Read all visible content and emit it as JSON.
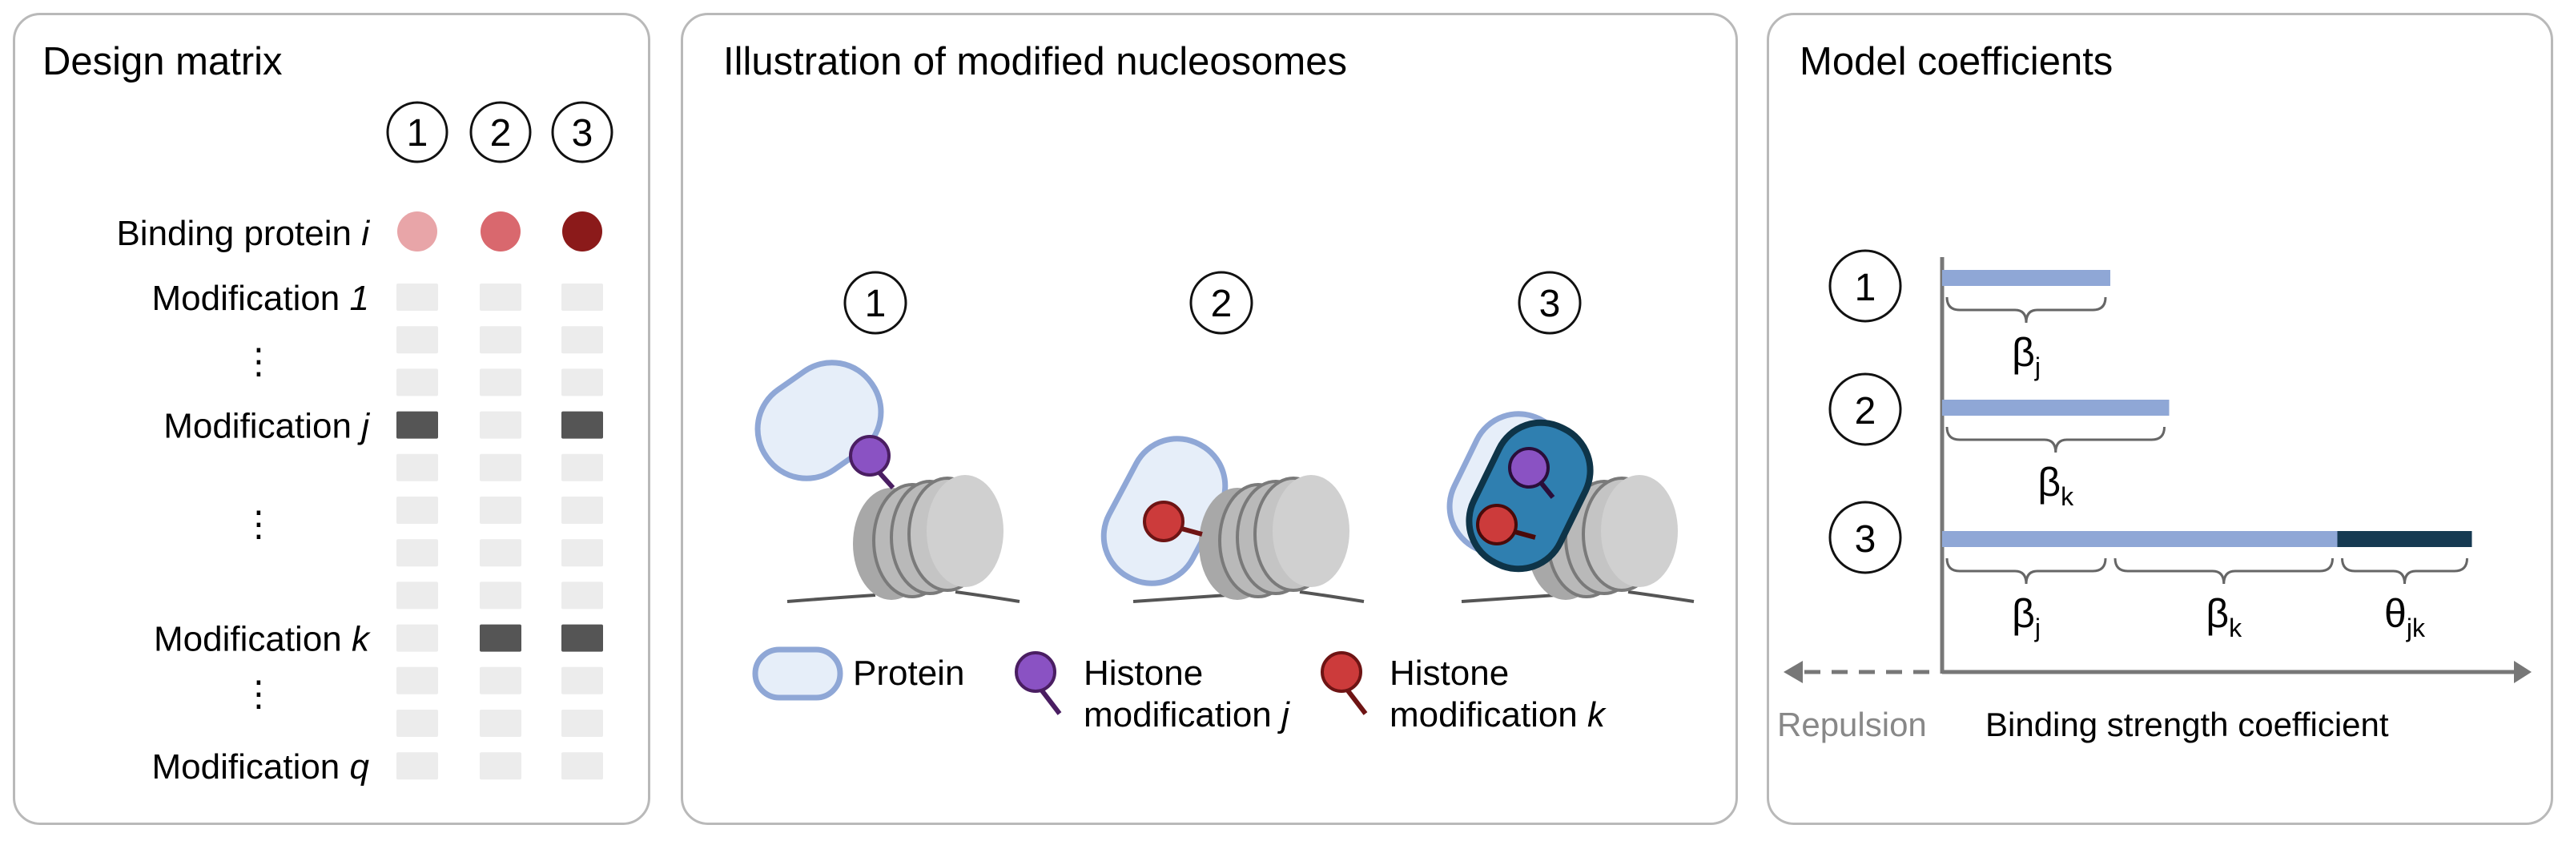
{
  "design_matrix": {
    "title": "Design matrix",
    "columns": [
      "1",
      "2",
      "3"
    ],
    "binding_protein": {
      "label": "Binding protein ",
      "var": "i"
    },
    "modifications": [
      {
        "label": "Modification ",
        "var": "1",
        "values": [
          0,
          0,
          0
        ]
      },
      {
        "label": "",
        "var": "",
        "values": [
          0,
          0,
          0
        ]
      },
      {
        "label": "",
        "var": "",
        "values": [
          0,
          0,
          0
        ]
      },
      {
        "label": "Modification ",
        "var": "j",
        "values": [
          1,
          0,
          1
        ]
      },
      {
        "label": "",
        "var": "",
        "values": [
          0,
          0,
          0
        ]
      },
      {
        "label": "",
        "var": "",
        "values": [
          0,
          0,
          0
        ]
      },
      {
        "label": "",
        "var": "",
        "values": [
          0,
          0,
          0
        ]
      },
      {
        "label": "",
        "var": "",
        "values": [
          0,
          0,
          0
        ]
      },
      {
        "label": "Modification ",
        "var": "k",
        "values": [
          0,
          1,
          1
        ]
      },
      {
        "label": "",
        "var": "",
        "values": [
          0,
          0,
          0
        ]
      },
      {
        "label": "",
        "var": "",
        "values": [
          0,
          0,
          0
        ]
      },
      {
        "label": "Modification ",
        "var": "q",
        "values": [
          0,
          0,
          0
        ]
      }
    ],
    "ellipsis": "⋮",
    "protein_dot_colors": [
      "#e8a5a8",
      "#d9686e",
      "#8b1a1a"
    ]
  },
  "illustration": {
    "title": "Illustration of modified nucleosomes",
    "labels": [
      "1",
      "2",
      "3"
    ],
    "legend": {
      "protein": "Protein",
      "mod_j": {
        "line1": "Histone",
        "line2": "modification ",
        "var": "j"
      },
      "mod_k": {
        "line1": "Histone",
        "line2": "modification ",
        "var": "k"
      }
    }
  },
  "coefficients": {
    "title": "Model coefficients",
    "labels": [
      "1",
      "2",
      "3"
    ],
    "terms": {
      "beta_j": {
        "base": "β",
        "sub": "j"
      },
      "beta_k": {
        "base": "β",
        "sub": "k"
      },
      "theta_jk": {
        "base": "θ",
        "sub": "jk"
      }
    },
    "bars": [
      {
        "row": "1",
        "segments": [
          {
            "term": "beta_j",
            "value": 1.0
          }
        ]
      },
      {
        "row": "2",
        "segments": [
          {
            "term": "beta_k",
            "value": 1.35
          }
        ]
      },
      {
        "row": "3",
        "segments": [
          {
            "term": "beta_j",
            "value": 1.0
          },
          {
            "term": "beta_k",
            "value": 1.35
          },
          {
            "term": "theta_jk",
            "value": 0.8
          }
        ]
      }
    ],
    "x_axis_label": "Binding strength coefficient",
    "negative_label": "Repulsion"
  },
  "colors": {
    "beta_bar": "#8fa7d6",
    "theta_bar": "#163a52",
    "matrix_on": "#555555",
    "matrix_off": "#ececec",
    "protein_fill": "#e6eef9",
    "protein_stroke": "#8fa7d6",
    "protein_bound_fill": "#2f7fb0",
    "protein_bound_stroke": "#0e3448",
    "mod_j": "#8a52c3",
    "mod_k": "#cc3b3b",
    "histone": "#a8a8a8",
    "axis": "#777777"
  }
}
